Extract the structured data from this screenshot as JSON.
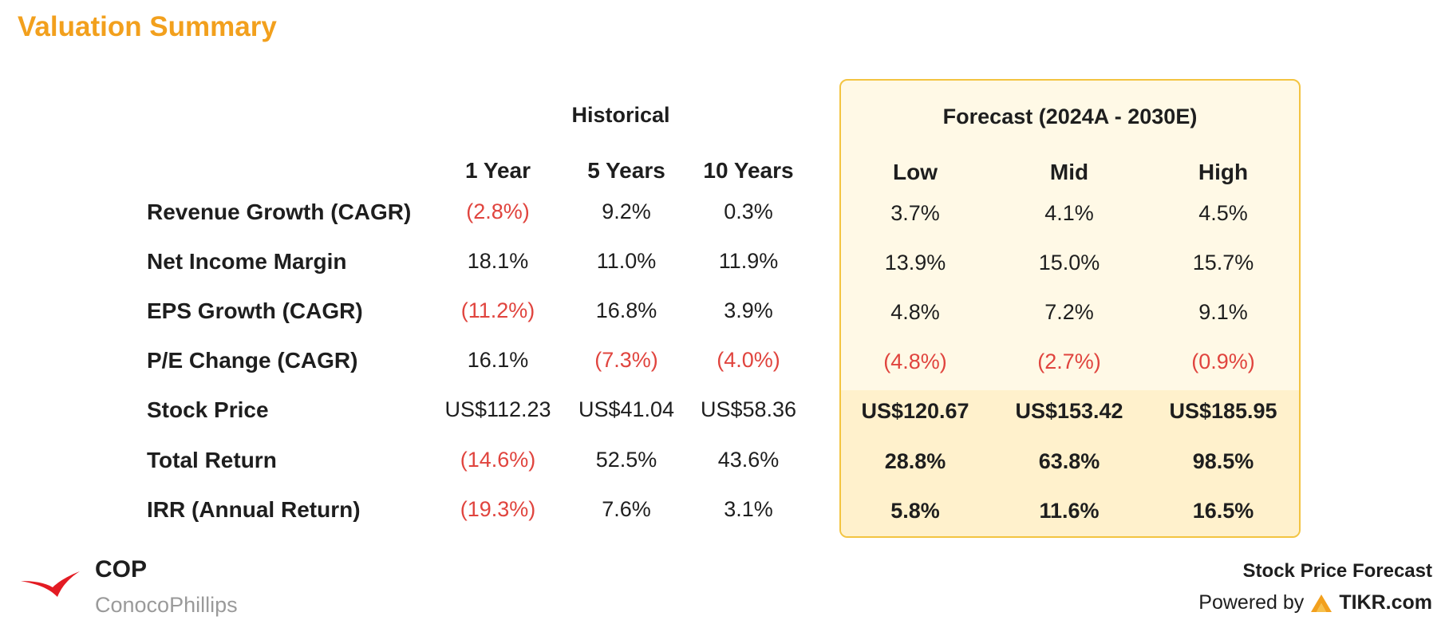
{
  "title": "Valuation Summary",
  "groups": {
    "historical": "Historical",
    "forecast": "Forecast (2024A - 2030E)"
  },
  "columns": [
    "1 Year",
    "5 Years",
    "10 Years",
    "Low",
    "Mid",
    "High"
  ],
  "rows": [
    {
      "label": "Revenue Growth (CAGR)",
      "values": [
        "(2.8%)",
        "9.2%",
        "0.3%",
        "3.7%",
        "4.1%",
        "4.5%"
      ]
    },
    {
      "label": "Net Income Margin",
      "values": [
        "18.1%",
        "11.0%",
        "11.9%",
        "13.9%",
        "15.0%",
        "15.7%"
      ]
    },
    {
      "label": "EPS Growth (CAGR)",
      "values": [
        "(11.2%)",
        "16.8%",
        "3.9%",
        "4.8%",
        "7.2%",
        "9.1%"
      ]
    },
    {
      "label": "P/E Change (CAGR)",
      "values": [
        "16.1%",
        "(7.3%)",
        "(4.0%)",
        "(4.8%)",
        "(2.7%)",
        "(0.9%)"
      ]
    },
    {
      "label": "Stock Price",
      "values": [
        "US$112.23",
        "US$41.04",
        "US$58.36",
        "US$120.67",
        "US$153.42",
        "US$185.95"
      ]
    },
    {
      "label": "Total Return",
      "values": [
        "(14.6%)",
        "52.5%",
        "43.6%",
        "28.8%",
        "63.8%",
        "98.5%"
      ]
    },
    {
      "label": "IRR (Annual Return)",
      "values": [
        "(19.3%)",
        "7.6%",
        "3.1%",
        "5.8%",
        "11.6%",
        "16.5%"
      ]
    }
  ],
  "company": {
    "ticker": "COP",
    "name": "ConocoPhillips",
    "logo_icon": "conocophillips-wing-logo"
  },
  "footer": {
    "title": "Stock Price Forecast",
    "powered_by": "Powered by",
    "brand": "TIKR.com",
    "brand_icon": "tikr-logo-icon"
  },
  "colors": {
    "title": "#f2a01d",
    "negative": "#e0443e",
    "forecast_bg": "#fff9e6",
    "forecast_bg_lower": "#fff1cc",
    "forecast_border": "#f3c441",
    "logo_red": "#e31b23"
  }
}
